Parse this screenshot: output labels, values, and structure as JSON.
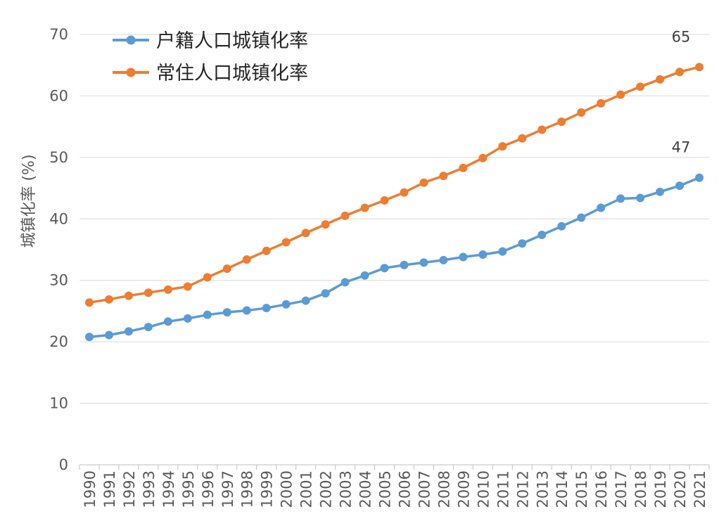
{
  "chart_data": {
    "type": "line",
    "title": "",
    "xlabel": "",
    "ylabel": "城镇化率 (%)",
    "ylim": [
      0,
      70
    ],
    "yticks": [
      0,
      10,
      20,
      30,
      40,
      50,
      60,
      70
    ],
    "grid": true,
    "legend_position": "top-left",
    "categories": [
      "1990",
      "1991",
      "1992",
      "1993",
      "1994",
      "1995",
      "1996",
      "1997",
      "1998",
      "1999",
      "2000",
      "2001",
      "2002",
      "2003",
      "2004",
      "2005",
      "2006",
      "2007",
      "2008",
      "2009",
      "2010",
      "2011",
      "2012",
      "2013",
      "2014",
      "2015",
      "2016",
      "2017",
      "2018",
      "2019",
      "2020",
      "2021"
    ],
    "series": [
      {
        "name": "户籍人口城镇化率",
        "color": "#5b9bd5",
        "values": [
          20.8,
          21.1,
          21.7,
          22.4,
          23.3,
          23.8,
          24.4,
          24.8,
          25.1,
          25.5,
          26.1,
          26.7,
          27.9,
          29.7,
          30.8,
          32.0,
          32.5,
          32.9,
          33.3,
          33.8,
          34.2,
          34.7,
          36.0,
          37.4,
          38.8,
          40.2,
          41.8,
          43.3,
          43.4,
          44.4,
          45.4,
          46.7
        ],
        "end_label": "47"
      },
      {
        "name": "常住人口城镇化率",
        "color": "#ed7d31",
        "values": [
          26.4,
          26.9,
          27.5,
          28.0,
          28.5,
          29.0,
          30.5,
          31.9,
          33.4,
          34.8,
          36.2,
          37.7,
          39.1,
          40.5,
          41.8,
          43.0,
          44.3,
          45.9,
          47.0,
          48.3,
          49.9,
          51.8,
          53.1,
          54.5,
          55.8,
          57.3,
          58.8,
          60.2,
          61.5,
          62.7,
          63.9,
          64.7
        ],
        "end_label": "65"
      }
    ]
  }
}
